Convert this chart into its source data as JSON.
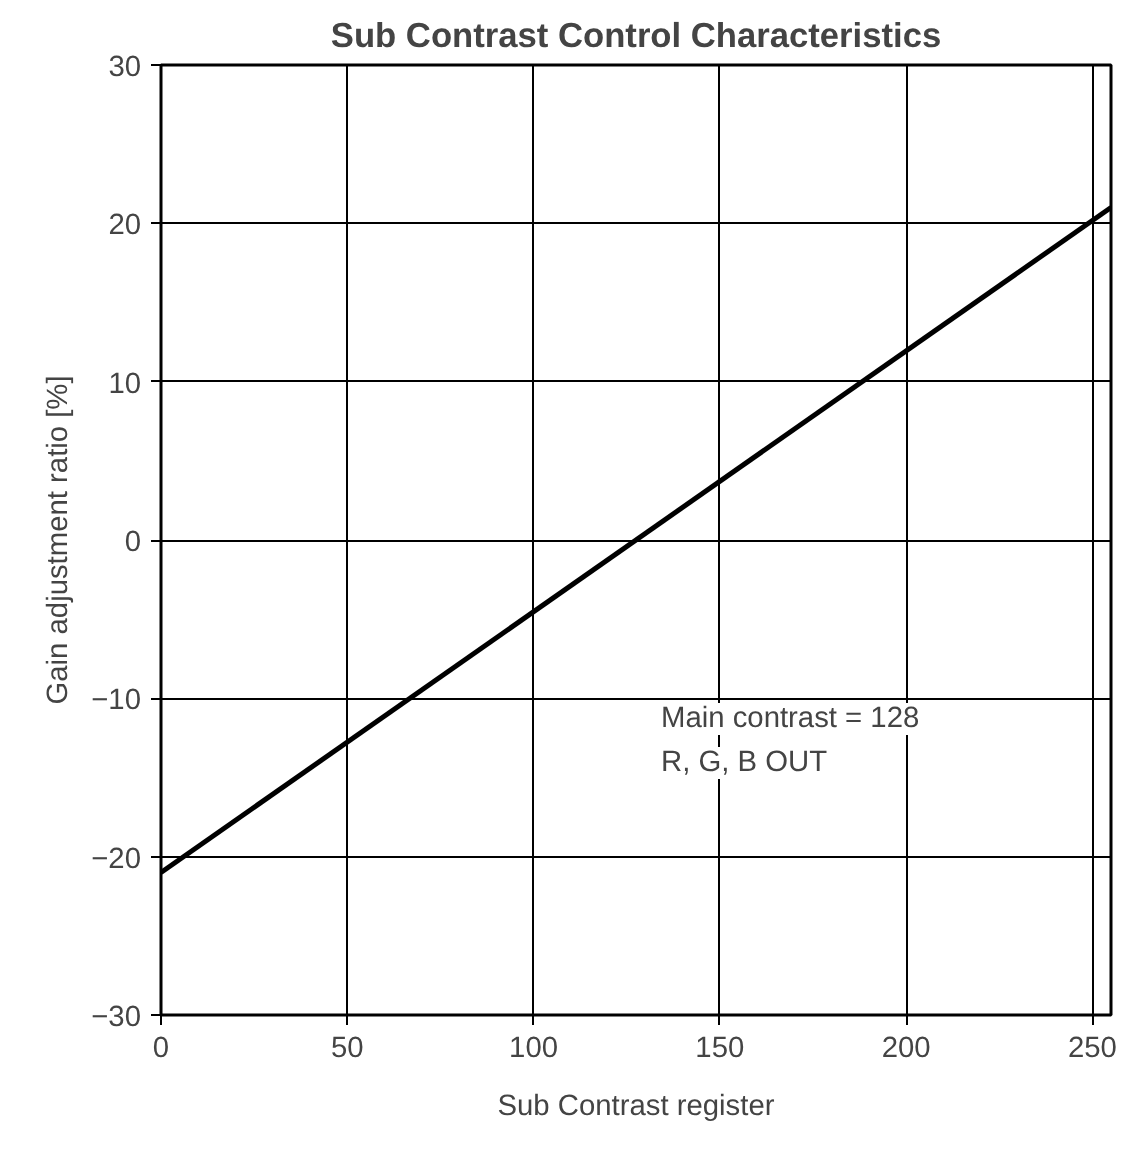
{
  "chart_data": {
    "type": "line",
    "title": "Sub Contrast Control Characteristics",
    "xlabel": "Sub Contrast register",
    "ylabel": "Gain adjustment ratio [%]",
    "x": [
      0,
      255
    ],
    "series": [
      {
        "color": "#000000",
        "values": [
          -21,
          21
        ]
      }
    ],
    "xlim": [
      0,
      255
    ],
    "xticks": [
      0,
      50,
      100,
      150,
      200,
      250
    ],
    "ylim": [
      -30,
      30
    ],
    "yticks": [
      {
        "value": -30,
        "label": "−30"
      },
      {
        "value": -20,
        "label": "−20"
      },
      {
        "value": -10,
        "label": "−10"
      },
      0,
      10,
      20,
      30
    ],
    "grid": true,
    "marker": "none",
    "line_style": "solid",
    "annotations": [
      "Main contrast = 128",
      "R, G, B OUT"
    ]
  }
}
